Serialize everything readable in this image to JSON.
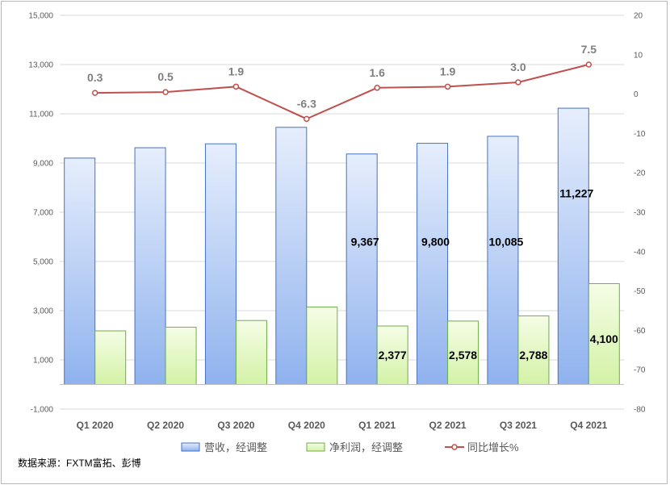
{
  "chart_data": {
    "type": "bar",
    "categories": [
      "Q1 2020",
      "Q2 2020",
      "Q3 2020",
      "Q4 2020",
      "Q1 2021",
      "Q2 2021",
      "Q3 2021",
      "Q4 2021"
    ],
    "series": [
      {
        "name": "营收，经调整",
        "type": "bar",
        "axis": "left",
        "values": [
          9200,
          9620,
          9780,
          10450,
          9367,
          9800,
          10085,
          11227
        ],
        "labels": [
          "",
          "",
          "",
          "",
          "9,367",
          "9,800",
          "10,085",
          "11,227"
        ],
        "color": "#8fb2ee"
      },
      {
        "name": "净利润，经调整",
        "type": "bar",
        "axis": "left",
        "values": [
          2180,
          2330,
          2600,
          3150,
          2377,
          2578,
          2788,
          4100
        ],
        "labels": [
          "",
          "",
          "",
          "",
          "2,377",
          "2,578",
          "2,788",
          "4,100"
        ],
        "color": "#d8f5b0"
      },
      {
        "name": "同比增长%",
        "type": "line",
        "axis": "right",
        "values": [
          0.3,
          0.5,
          1.9,
          -6.3,
          1.6,
          1.9,
          3.0,
          7.5
        ],
        "labels": [
          "0.3",
          "0.5",
          "1.9",
          "-6.3",
          "1.6",
          "1.9",
          "3.0",
          "7.5"
        ],
        "color": "#c0504d"
      }
    ],
    "y_left": {
      "ylim": [
        -1000,
        15000
      ],
      "ticks": [
        -1000,
        1000,
        3000,
        5000,
        7000,
        9000,
        11000,
        13000,
        15000
      ],
      "tick_labels": [
        "-1,000",
        "1,000",
        "3,000",
        "5,000",
        "7,000",
        "9,000",
        "11,000",
        "13,000",
        "15,000"
      ]
    },
    "y_right": {
      "ylim": [
        -80,
        20
      ],
      "ticks": [
        -80,
        -70,
        -60,
        -50,
        -40,
        -30,
        -20,
        -10,
        0,
        10,
        20
      ],
      "tick_labels": [
        "-80",
        "-70",
        "-60",
        "-50",
        "-40",
        "-30",
        "-20",
        "-10",
        "0",
        "10",
        "20"
      ]
    },
    "grid": true,
    "legend_position": "bottom"
  },
  "source_note": "数据来源：FXTM富拓、彭博"
}
